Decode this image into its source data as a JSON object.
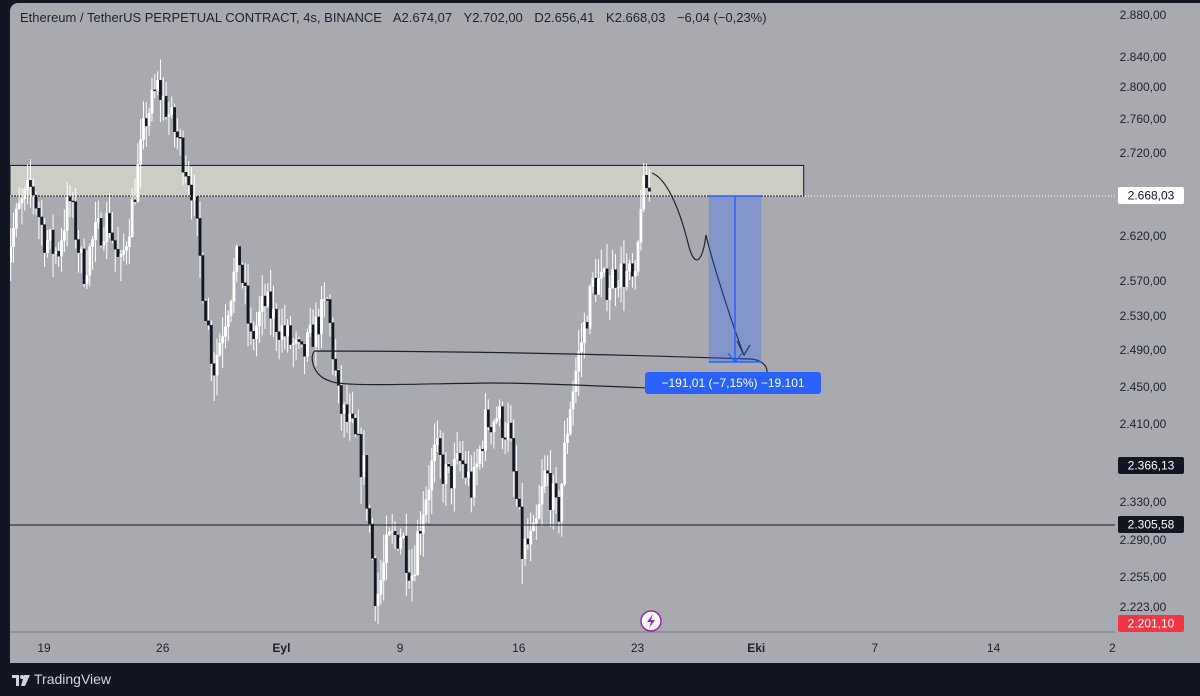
{
  "legend": {
    "symbol": "Ethereum / TetherUS PERPETUAL CONTRACT, 4s, BINANCE",
    "o_label": "A",
    "o_value": "2.674,07",
    "h_label": "Y",
    "h_value": "2.702,00",
    "l_label": "D",
    "l_value": "2.656,41",
    "c_label": "K",
    "c_value": "2.668,03",
    "change": "−6,04 (−0,23%)"
  },
  "price_badges": {
    "current": "2.668,03",
    "level_1": "2.366,13",
    "level_2": "2.305,58",
    "low": "2.201,10"
  },
  "measure_label": "−191,01 (−7,15%) −19.101",
  "branding": {
    "name": "TradingView"
  },
  "colors": {
    "background": "#a9aab0",
    "candle": "#ffffff",
    "measure": "#2962ff",
    "low_badge": "#f23645"
  },
  "chart_data": {
    "type": "candlestick",
    "y_ticks": [
      2880,
      2840,
      2800,
      2760,
      2720,
      2620,
      2570,
      2530,
      2490,
      2450,
      2410,
      2330,
      2290,
      2255,
      2223
    ],
    "y_tick_labels": [
      "2.880,00",
      "2.840,00",
      "2.800,00",
      "2.760,00",
      "2.720,00",
      "2.620,00",
      "2.570,00",
      "2.530,00",
      "2.490,00",
      "2.450,00",
      "2.410,00",
      "2.330,00",
      "2.290,00",
      "2.255,00",
      "2.223,00"
    ],
    "x_tick_labels": [
      "19",
      "26",
      "Eyl",
      "9",
      "16",
      "23",
      "Eki",
      "7",
      "14",
      "2"
    ],
    "x_tick_days": [
      19,
      26,
      33,
      40,
      47,
      54,
      61,
      68,
      75,
      82
    ],
    "x_start_day": 16.7,
    "price_anchors": [
      [
        16.7,
        2590
      ],
      [
        17.5,
        2650
      ],
      [
        18.3,
        2680
      ],
      [
        19.0,
        2620
      ],
      [
        19.8,
        2600
      ],
      [
        20.5,
        2665
      ],
      [
        21.3,
        2580
      ],
      [
        22.0,
        2620
      ],
      [
        22.8,
        2640
      ],
      [
        23.5,
        2580
      ],
      [
        24.2,
        2655
      ],
      [
        25.0,
        2760
      ],
      [
        25.7,
        2800
      ],
      [
        26.3,
        2770
      ],
      [
        27.0,
        2730
      ],
      [
        27.7,
        2680
      ],
      [
        28.4,
        2560
      ],
      [
        29.0,
        2470
      ],
      [
        29.8,
        2540
      ],
      [
        30.5,
        2600
      ],
      [
        31.2,
        2500
      ],
      [
        32.0,
        2545
      ],
      [
        32.8,
        2520
      ],
      [
        33.5,
        2500
      ],
      [
        34.2,
        2480
      ],
      [
        35.0,
        2515
      ],
      [
        35.7,
        2545
      ],
      [
        36.4,
        2430
      ],
      [
        37.2,
        2400
      ],
      [
        37.9,
        2360
      ],
      [
        38.6,
        2230
      ],
      [
        39.3,
        2285
      ],
      [
        40.0,
        2300
      ],
      [
        40.7,
        2260
      ],
      [
        41.4,
        2330
      ],
      [
        42.1,
        2380
      ],
      [
        42.8,
        2350
      ],
      [
        43.6,
        2370
      ],
      [
        44.3,
        2340
      ],
      [
        45.0,
        2410
      ],
      [
        45.7,
        2420
      ],
      [
        46.4,
        2400
      ],
      [
        47.2,
        2280
      ],
      [
        47.9,
        2290
      ],
      [
        48.6,
        2360
      ],
      [
        49.3,
        2310
      ],
      [
        50.0,
        2430
      ],
      [
        50.7,
        2500
      ],
      [
        51.4,
        2570
      ],
      [
        52.1,
        2565
      ],
      [
        52.8,
        2580
      ],
      [
        53.5,
        2575
      ],
      [
        53.9,
        2560
      ],
      [
        54.2,
        2665
      ],
      [
        54.5,
        2680
      ],
      [
        54.8,
        2668
      ]
    ],
    "resistance_zone": {
      "from": 2668,
      "to": 2705,
      "x_end_day": 63.8
    },
    "horizontal_lines": [
      {
        "price": 2305.58,
        "style": "solid"
      },
      {
        "price": 2668.03,
        "style": "dotted"
      }
    ],
    "measure_box": {
      "x_start_day": 58.2,
      "x_end_day": 61.3,
      "from": 2668.03,
      "to": 2477
    },
    "event_marker_day": 54.0
  }
}
